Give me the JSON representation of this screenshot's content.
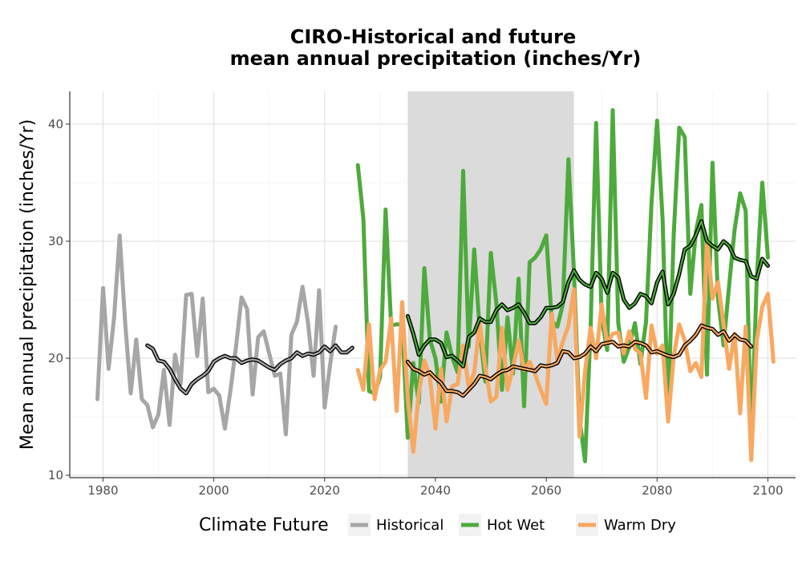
{
  "chart_data": {
    "type": "line",
    "title_lines": [
      "CIRO-Historical and future",
      "mean annual precipitation (inches/Yr)"
    ],
    "xlabel": "",
    "ylabel": "Mean annual precipitation (inches/Yr)",
    "xlim": [
      1974,
      2105
    ],
    "ylim": [
      9.8,
      42.8
    ],
    "xticks": [
      1980,
      2000,
      2020,
      2040,
      2060,
      2080,
      2100
    ],
    "yticks": [
      10,
      20,
      30,
      40
    ],
    "grid": true,
    "shaded_period": [
      2035,
      2065
    ],
    "legend": {
      "title": "Climate Future",
      "position": "bottom"
    },
    "series": [
      {
        "name": "Historical",
        "color": "#a6a6a6",
        "x_start": 1979,
        "values": [
          16.5,
          26.0,
          19.1,
          23.5,
          30.5,
          23.0,
          17.0,
          21.6,
          16.5,
          16.0,
          14.1,
          15.2,
          19.0,
          14.3,
          20.3,
          17.8,
          25.4,
          25.5,
          20.2,
          25.1,
          17.1,
          17.4,
          16.8,
          14.0,
          17.2,
          21.0,
          25.2,
          24.2,
          16.9,
          21.8,
          22.3,
          20.4,
          18.5,
          18.7,
          13.5,
          22.0,
          23.1,
          26.1,
          23.0,
          18.5,
          25.8,
          15.8,
          19.5,
          22.7
        ]
      },
      {
        "name": "Hot Wet",
        "color": "#4daa3c",
        "x_start": 2026,
        "values": [
          36.5,
          31.9,
          17.2,
          17.0,
          18.4,
          32.7,
          22.8,
          22.9,
          22.9,
          13.2,
          19.6,
          16.2,
          27.7,
          21.6,
          20.0,
          16.3,
          22.2,
          20.1,
          18.8,
          36.0,
          21.0,
          29.3,
          22.3,
          18.0,
          29.0,
          24.7,
          17.3,
          23.5,
          18.7,
          26.8,
          15.9,
          28.2,
          28.6,
          29.3,
          30.5,
          23.2,
          22.7,
          24.6,
          37.0,
          27.3,
          14.8,
          11.2,
          22.5,
          40.1,
          23.4,
          20.7,
          41.2,
          23.0,
          19.7,
          21.0,
          23.0,
          19.5,
          23.1,
          33.3,
          40.3,
          31.8,
          15.2,
          30.5,
          39.7,
          38.9,
          25.5,
          30.8,
          33.1,
          18.6,
          36.7,
          25.1,
          21.1,
          26.2,
          31.0,
          34.1,
          32.6,
          12.5,
          26.8,
          35.0,
          28.6
        ]
      },
      {
        "name": "Warm Dry",
        "color": "#f8a860",
        "x_start": 2026,
        "values": [
          19.0,
          17.3,
          22.9,
          16.5,
          19.0,
          19.7,
          23.4,
          15.5,
          24.8,
          16.6,
          12.0,
          17.1,
          19.8,
          18.4,
          14.0,
          19.1,
          14.6,
          17.6,
          17.8,
          21.1,
          17.5,
          18.8,
          23.0,
          19.2,
          16.3,
          16.7,
          22.6,
          17.3,
          19.2,
          21.5,
          19.0,
          19.7,
          18.6,
          17.3,
          16.1,
          23.8,
          19.8,
          21.4,
          22.8,
          25.9,
          13.3,
          18.9,
          22.6,
          20.0,
          24.6,
          21.2,
          22.1,
          22.2,
          20.4,
          22.3,
          20.8,
          20.4,
          16.6,
          22.8,
          20.4,
          21.1,
          14.6,
          20.1,
          22.9,
          21.5,
          18.9,
          19.6,
          18.4,
          30.2,
          25.1,
          26.5,
          22.9,
          19.1,
          22.1,
          15.3,
          22.7,
          11.3,
          21.5,
          24.4,
          25.5,
          19.7
        ]
      }
    ],
    "smoothed_series": [
      {
        "name": "Historical",
        "x_start": 1988,
        "values": [
          21.1,
          20.8,
          19.8,
          19.7,
          19.1,
          18.2,
          17.4,
          17.0,
          17.8,
          18.2,
          18.5,
          18.9,
          19.7,
          20.0,
          20.2,
          20.0,
          20.0,
          19.6,
          19.8,
          19.9,
          19.8,
          19.5,
          19.2,
          19.0,
          19.5,
          19.8,
          20.0,
          20.5,
          20.2,
          20.4,
          20.3,
          20.5,
          21.0,
          20.6,
          21.1,
          20.5,
          20.5,
          20.9
        ]
      },
      {
        "name": "Hot Wet",
        "x_start": 2035,
        "values": [
          23.6,
          22.1,
          20.3,
          21.1,
          21.6,
          21.6,
          21.3,
          20.1,
          20.2,
          19.8,
          19.3,
          21.8,
          22.2,
          23.4,
          23.1,
          23.1,
          24.1,
          24.6,
          24.1,
          24.3,
          24.6,
          23.9,
          23.0,
          23.0,
          23.5,
          24.3,
          24.3,
          24.4,
          24.8,
          26.5,
          27.5,
          26.7,
          26.3,
          26.1,
          27.3,
          26.8,
          25.6,
          27.3,
          26.9,
          25.0,
          24.3,
          24.7,
          25.5,
          25.3,
          24.7,
          26.5,
          27.4,
          24.6,
          25.5,
          27.2,
          29.3,
          29.6,
          30.5,
          31.7,
          30.0,
          29.6,
          29.3,
          30.0,
          29.6,
          28.6,
          28.4,
          28.3,
          27.0,
          26.8,
          28.5,
          27.9
        ]
      },
      {
        "name": "Warm Dry",
        "x_start": 2035,
        "values": [
          19.7,
          19.1,
          18.9,
          18.6,
          18.8,
          18.3,
          17.9,
          17.2,
          17.2,
          17.1,
          16.8,
          17.3,
          17.8,
          18.5,
          18.4,
          18.2,
          18.6,
          18.9,
          19.0,
          19.3,
          19.2,
          19.1,
          19.0,
          18.9,
          19.4,
          19.3,
          19.4,
          19.6,
          20.6,
          20.5,
          20.0,
          20.1,
          20.4,
          21.0,
          20.6,
          21.2,
          21.3,
          21.4,
          21.0,
          21.1,
          21.0,
          21.4,
          21.3,
          21.1,
          20.5,
          20.6,
          20.4,
          20.2,
          20.1,
          20.3,
          21.1,
          21.5,
          22.0,
          22.8,
          22.6,
          22.5,
          22.0,
          22.3,
          21.5,
          22.0,
          21.6,
          21.5,
          21.0
        ]
      }
    ]
  }
}
